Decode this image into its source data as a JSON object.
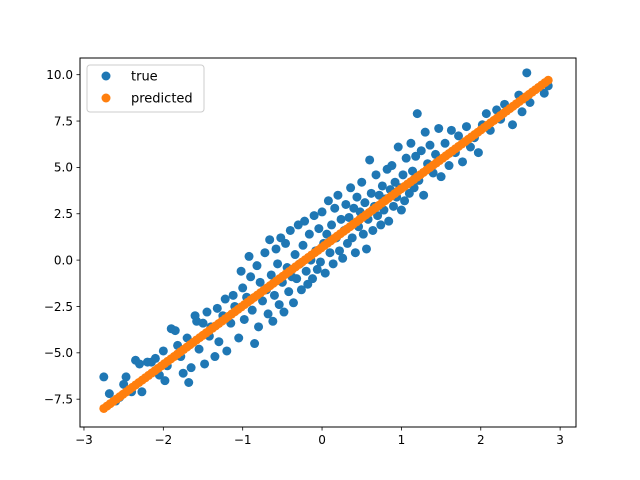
{
  "chart_data": {
    "type": "scatter",
    "title": "",
    "xlabel": "",
    "ylabel": "",
    "xlim": [
      -3.05,
      3.2
    ],
    "ylim": [
      -9.0,
      10.9
    ],
    "x_ticks": [
      -3,
      -2,
      -1,
      0,
      1,
      2,
      3
    ],
    "x_tick_labels": [
      "−3",
      "−2",
      "−1",
      "0",
      "1",
      "2",
      "3"
    ],
    "y_ticks": [
      -7.5,
      -5.0,
      -2.5,
      0.0,
      2.5,
      5.0,
      7.5,
      10.0
    ],
    "y_tick_labels": [
      "−7.5",
      "−5.0",
      "−2.5",
      "0.0",
      "2.5",
      "5.0",
      "7.5",
      "10.0"
    ],
    "grid": false,
    "legend_position": "top-left",
    "series": [
      {
        "name": "true",
        "color": "#1f77b4",
        "points": [
          [
            -2.75,
            -6.3
          ],
          [
            -2.68,
            -7.2
          ],
          [
            -2.6,
            -7.6
          ],
          [
            -2.55,
            -7.4
          ],
          [
            -2.5,
            -6.7
          ],
          [
            -2.47,
            -6.3
          ],
          [
            -2.4,
            -7.1
          ],
          [
            -2.35,
            -5.4
          ],
          [
            -2.3,
            -5.6
          ],
          [
            -2.27,
            -7.1
          ],
          [
            -2.2,
            -5.5
          ],
          [
            -2.15,
            -5.5
          ],
          [
            -2.1,
            -5.3
          ],
          [
            -2.05,
            -6.2
          ],
          [
            -2.0,
            -4.9
          ],
          [
            -1.98,
            -6.5
          ],
          [
            -1.95,
            -5.7
          ],
          [
            -1.9,
            -3.7
          ],
          [
            -1.85,
            -3.8
          ],
          [
            -1.82,
            -4.6
          ],
          [
            -1.78,
            -5.2
          ],
          [
            -1.75,
            -6.1
          ],
          [
            -1.7,
            -4.2
          ],
          [
            -1.68,
            -6.6
          ],
          [
            -1.65,
            -5.8
          ],
          [
            -1.6,
            -3.0
          ],
          [
            -1.58,
            -3.3
          ],
          [
            -1.55,
            -4.8
          ],
          [
            -1.5,
            -3.4
          ],
          [
            -1.48,
            -5.6
          ],
          [
            -1.45,
            -2.8
          ],
          [
            -1.42,
            -4.1
          ],
          [
            -1.4,
            -3.6
          ],
          [
            -1.35,
            -5.2
          ],
          [
            -1.32,
            -2.6
          ],
          [
            -1.3,
            -4.4
          ],
          [
            -1.25,
            -3.0
          ],
          [
            -1.22,
            -2.1
          ],
          [
            -1.2,
            -4.9
          ],
          [
            -1.15,
            -3.4
          ],
          [
            -1.12,
            -1.9
          ],
          [
            -1.1,
            -2.5
          ],
          [
            -1.05,
            -4.2
          ],
          [
            -1.02,
            -0.6
          ],
          [
            -1.0,
            -1.5
          ],
          [
            -0.98,
            -3.2
          ],
          [
            -0.95,
            -2.0
          ],
          [
            -0.92,
            0.2
          ],
          [
            -0.9,
            -0.9
          ],
          [
            -0.88,
            -2.7
          ],
          [
            -0.85,
            -4.5
          ],
          [
            -0.82,
            -0.3
          ],
          [
            -0.8,
            -3.6
          ],
          [
            -0.78,
            -1.2
          ],
          [
            -0.75,
            -2.2
          ],
          [
            -0.72,
            0.4
          ],
          [
            -0.7,
            -1.6
          ],
          [
            -0.68,
            -2.9
          ],
          [
            -0.66,
            1.1
          ],
          [
            -0.64,
            -0.8
          ],
          [
            -0.62,
            -3.3
          ],
          [
            -0.6,
            -1.9
          ],
          [
            -0.58,
            0.6
          ],
          [
            -0.56,
            -0.2
          ],
          [
            -0.54,
            -2.4
          ],
          [
            -0.52,
            1.2
          ],
          [
            -0.5,
            -1.2
          ],
          [
            -0.48,
            -2.8
          ],
          [
            -0.46,
            0.9
          ],
          [
            -0.44,
            -0.4
          ],
          [
            -0.42,
            -1.7
          ],
          [
            -0.4,
            1.6
          ],
          [
            -0.38,
            -0.9
          ],
          [
            -0.36,
            -2.3
          ],
          [
            -0.34,
            0.3
          ],
          [
            -0.32,
            -1.0
          ],
          [
            -0.3,
            1.9
          ],
          [
            -0.28,
            -0.2
          ],
          [
            -0.26,
            -1.6
          ],
          [
            -0.24,
            0.8
          ],
          [
            -0.22,
            2.1
          ],
          [
            -0.2,
            -0.6
          ],
          [
            -0.18,
            -1.3
          ],
          [
            -0.16,
            1.4
          ],
          [
            -0.14,
            0.0
          ],
          [
            -0.12,
            -1.0
          ],
          [
            -0.1,
            2.4
          ],
          [
            -0.08,
            0.5
          ],
          [
            -0.06,
            -0.5
          ],
          [
            -0.04,
            1.7
          ],
          [
            -0.02,
            -0.1
          ],
          [
            0.0,
            2.6
          ],
          [
            0.02,
            0.9
          ],
          [
            0.04,
            -0.7
          ],
          [
            0.06,
            1.4
          ],
          [
            0.08,
            3.2
          ],
          [
            0.1,
            0.4
          ],
          [
            0.12,
            1.9
          ],
          [
            0.14,
            -0.2
          ],
          [
            0.16,
            2.8
          ],
          [
            0.18,
            1.2
          ],
          [
            0.2,
            3.5
          ],
          [
            0.22,
            0.5
          ],
          [
            0.24,
            2.2
          ],
          [
            0.26,
            0.1
          ],
          [
            0.28,
            1.6
          ],
          [
            0.3,
            3.0
          ],
          [
            0.32,
            0.9
          ],
          [
            0.34,
            2.3
          ],
          [
            0.36,
            3.9
          ],
          [
            0.38,
            1.2
          ],
          [
            0.4,
            2.8
          ],
          [
            0.42,
            0.4
          ],
          [
            0.44,
            3.4
          ],
          [
            0.46,
            1.8
          ],
          [
            0.48,
            2.6
          ],
          [
            0.5,
            4.2
          ],
          [
            0.52,
            1.4
          ],
          [
            0.54,
            3.1
          ],
          [
            0.56,
            0.6
          ],
          [
            0.58,
            2.2
          ],
          [
            0.6,
            5.4
          ],
          [
            0.62,
            3.6
          ],
          [
            0.64,
            1.6
          ],
          [
            0.66,
            2.9
          ],
          [
            0.68,
            4.6
          ],
          [
            0.7,
            2.4
          ],
          [
            0.72,
            3.5
          ],
          [
            0.74,
            1.9
          ],
          [
            0.76,
            4.0
          ],
          [
            0.78,
            2.7
          ],
          [
            0.8,
            3.3
          ],
          [
            0.82,
            4.9
          ],
          [
            0.84,
            2.1
          ],
          [
            0.86,
            3.8
          ],
          [
            0.88,
            5.1
          ],
          [
            0.9,
            2.9
          ],
          [
            0.92,
            4.2
          ],
          [
            0.94,
            3.4
          ],
          [
            0.96,
            6.1
          ],
          [
            0.98,
            3.9
          ],
          [
            1.0,
            2.7
          ],
          [
            1.02,
            4.6
          ],
          [
            1.04,
            3.2
          ],
          [
            1.06,
            5.5
          ],
          [
            1.08,
            4.1
          ],
          [
            1.1,
            3.6
          ],
          [
            1.12,
            6.3
          ],
          [
            1.14,
            4.8
          ],
          [
            1.16,
            3.9
          ],
          [
            1.18,
            5.6
          ],
          [
            1.2,
            7.9
          ],
          [
            1.22,
            4.3
          ],
          [
            1.25,
            5.9
          ],
          [
            1.28,
            3.5
          ],
          [
            1.3,
            6.9
          ],
          [
            1.33,
            5.2
          ],
          [
            1.36,
            6.2
          ],
          [
            1.4,
            4.7
          ],
          [
            1.43,
            5.7
          ],
          [
            1.47,
            7.1
          ],
          [
            1.5,
            4.5
          ],
          [
            1.55,
            6.3
          ],
          [
            1.6,
            5.1
          ],
          [
            1.63,
            7.0
          ],
          [
            1.68,
            5.8
          ],
          [
            1.72,
            6.7
          ],
          [
            1.77,
            5.3
          ],
          [
            1.82,
            7.2
          ],
          [
            1.87,
            6.1
          ],
          [
            1.92,
            6.6
          ],
          [
            1.97,
            5.8
          ],
          [
            2.02,
            7.3
          ],
          [
            2.07,
            7.9
          ],
          [
            2.12,
            7.0
          ],
          [
            2.2,
            8.1
          ],
          [
            2.25,
            7.6
          ],
          [
            2.3,
            8.4
          ],
          [
            2.4,
            7.3
          ],
          [
            2.48,
            8.9
          ],
          [
            2.52,
            8.0
          ],
          [
            2.58,
            10.1
          ],
          [
            2.62,
            8.5
          ],
          [
            2.8,
            9.0
          ],
          [
            2.85,
            9.4
          ]
        ]
      },
      {
        "name": "predicted",
        "color": "#ff7f0e",
        "line_from": [
          -2.75,
          -8.0
        ],
        "line_to": [
          2.85,
          9.7
        ],
        "point_count": 140
      }
    ]
  }
}
